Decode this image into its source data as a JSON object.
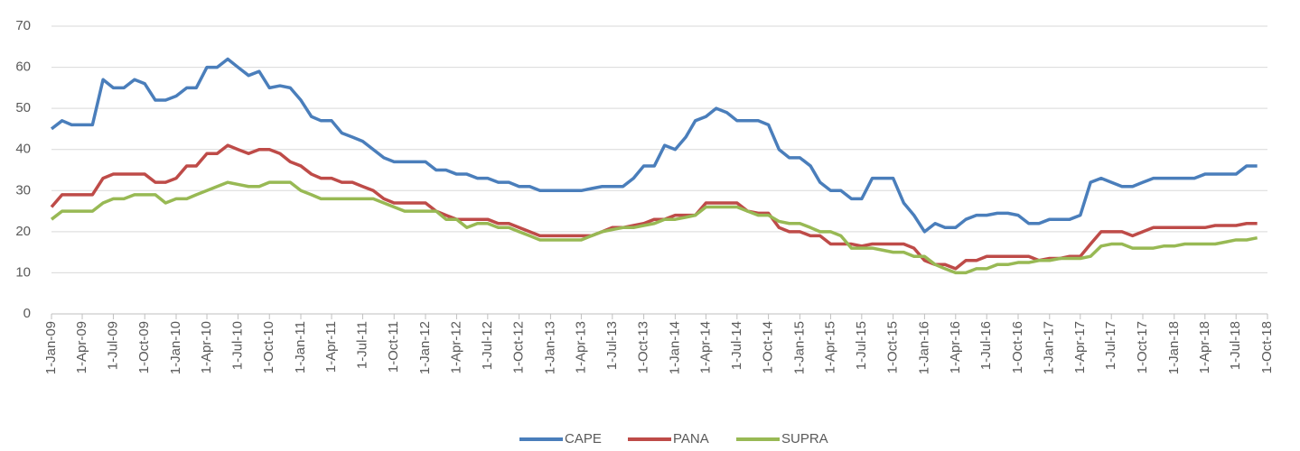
{
  "chart_data": {
    "type": "line",
    "x": [
      "2009-01-01",
      "2009-02-01",
      "2009-03-01",
      "2009-04-01",
      "2009-05-01",
      "2009-06-01",
      "2009-07-01",
      "2009-08-01",
      "2009-09-01",
      "2009-10-01",
      "2009-11-01",
      "2009-12-01",
      "2010-01-01",
      "2010-02-01",
      "2010-03-01",
      "2010-04-01",
      "2010-05-01",
      "2010-06-01",
      "2010-07-01",
      "2010-08-01",
      "2010-09-01",
      "2010-10-01",
      "2010-11-01",
      "2010-12-01",
      "2011-01-01",
      "2011-02-01",
      "2011-03-01",
      "2011-04-01",
      "2011-05-01",
      "2011-06-01",
      "2011-07-01",
      "2011-08-01",
      "2011-09-01",
      "2011-10-01",
      "2011-11-01",
      "2011-12-01",
      "2012-01-01",
      "2012-02-01",
      "2012-03-01",
      "2012-04-01",
      "2012-05-01",
      "2012-06-01",
      "2012-07-01",
      "2012-08-01",
      "2012-09-01",
      "2012-10-01",
      "2012-11-01",
      "2012-12-01",
      "2013-01-01",
      "2013-02-01",
      "2013-03-01",
      "2013-04-01",
      "2013-05-01",
      "2013-06-01",
      "2013-07-01",
      "2013-08-01",
      "2013-09-01",
      "2013-10-01",
      "2013-11-01",
      "2013-12-01",
      "2014-01-01",
      "2014-02-01",
      "2014-03-01",
      "2014-04-01",
      "2014-05-01",
      "2014-06-01",
      "2014-07-01",
      "2014-08-01",
      "2014-09-01",
      "2014-10-01",
      "2014-11-01",
      "2014-12-01",
      "2015-01-01",
      "2015-02-01",
      "2015-03-01",
      "2015-04-01",
      "2015-05-01",
      "2015-06-01",
      "2015-07-01",
      "2015-08-01",
      "2015-09-01",
      "2015-10-01",
      "2015-11-01",
      "2015-12-01",
      "2016-01-01",
      "2016-02-01",
      "2016-03-01",
      "2016-04-01",
      "2016-05-01",
      "2016-06-01",
      "2016-07-01",
      "2016-08-01",
      "2016-09-01",
      "2016-10-01",
      "2016-11-01",
      "2016-12-01",
      "2017-01-01",
      "2017-02-01",
      "2017-03-01",
      "2017-04-01",
      "2017-05-01",
      "2017-06-01",
      "2017-07-01",
      "2017-08-01",
      "2017-09-01",
      "2017-10-01",
      "2017-11-01",
      "2017-12-01",
      "2018-01-01",
      "2018-02-01",
      "2018-03-01",
      "2018-04-01",
      "2018-05-01",
      "2018-06-01",
      "2018-07-01",
      "2018-08-01",
      "2018-09-01"
    ],
    "series": [
      {
        "name": "CAPE",
        "color": "#4a7ebb",
        "values": [
          45,
          47,
          46,
          46,
          46,
          57,
          55,
          55,
          57,
          56,
          52,
          52,
          53,
          55,
          55,
          60,
          60,
          62,
          60,
          58,
          59,
          55,
          55.5,
          55,
          52,
          48,
          47,
          47,
          44,
          43,
          42,
          40,
          38,
          37,
          37,
          37,
          37,
          35,
          35,
          34,
          34,
          33,
          33,
          32,
          32,
          31,
          31,
          30,
          30,
          30,
          30,
          30,
          30.5,
          31,
          31,
          31,
          33,
          36,
          36,
          41,
          40,
          43,
          47,
          48,
          50,
          49,
          47,
          47,
          47,
          46,
          40,
          38,
          38,
          36,
          32,
          30,
          30,
          28,
          28,
          33,
          33,
          33,
          27,
          24,
          20,
          22,
          21,
          21,
          23,
          24,
          24,
          24.5,
          24.5,
          24,
          22,
          22,
          23,
          23,
          23,
          24,
          32,
          33,
          32,
          31,
          31,
          32,
          33,
          33,
          33,
          33,
          33,
          34,
          34,
          34,
          34,
          36,
          36
        ]
      },
      {
        "name": "PANA",
        "color": "#be4b48",
        "values": [
          26,
          29,
          29,
          29,
          29,
          33,
          34,
          34,
          34,
          34,
          32,
          32,
          33,
          36,
          36,
          39,
          39,
          41,
          40,
          39,
          40,
          40,
          39,
          37,
          36,
          34,
          33,
          33,
          32,
          32,
          31,
          30,
          28,
          27,
          27,
          27,
          27,
          25,
          24,
          23,
          23,
          23,
          23,
          22,
          22,
          21,
          20,
          19,
          19,
          19,
          19,
          19,
          19,
          20,
          21,
          21,
          21.5,
          22,
          23,
          23,
          24,
          24,
          24,
          27,
          27,
          27,
          27,
          25,
          24.5,
          24.5,
          21,
          20,
          20,
          19,
          19,
          17,
          17,
          17,
          16.5,
          17,
          17,
          17,
          17,
          16,
          13,
          12,
          12,
          11,
          13,
          13,
          14,
          14,
          14,
          14,
          14,
          13,
          13.5,
          13.5,
          14,
          14,
          17,
          20,
          20,
          20,
          19,
          20,
          21,
          21,
          21,
          21,
          21,
          21,
          21.5,
          21.5,
          21.5,
          22,
          22
        ]
      },
      {
        "name": "SUPRA",
        "color": "#98b954",
        "values": [
          23,
          25,
          25,
          25,
          25,
          27,
          28,
          28,
          29,
          29,
          29,
          27,
          28,
          28,
          29,
          30,
          31,
          32,
          31.5,
          31,
          31,
          32,
          32,
          32,
          30,
          29,
          28,
          28,
          28,
          28,
          28,
          28,
          27,
          26,
          25,
          25,
          25,
          25,
          23,
          23,
          21,
          22,
          22,
          21,
          21,
          20,
          19,
          18,
          18,
          18,
          18,
          18,
          19,
          20,
          20.5,
          21,
          21,
          21.5,
          22,
          23,
          23,
          23.5,
          24,
          26,
          26,
          26,
          26,
          25,
          24,
          24,
          22.5,
          22,
          22,
          21,
          20,
          20,
          19,
          16,
          16,
          16,
          15.5,
          15,
          15,
          14,
          14,
          12,
          11,
          10,
          10,
          11,
          11,
          12,
          12,
          12.5,
          12.5,
          13,
          13,
          13.5,
          13.5,
          13.5,
          14,
          16.5,
          17,
          17,
          16,
          16,
          16,
          16.5,
          16.5,
          17,
          17,
          17,
          17,
          17.5,
          18,
          18,
          18.5
        ]
      }
    ],
    "xlim": [
      "2009-01-01",
      "2018-10-01"
    ],
    "xticks": [
      {
        "value": "2009-01-01",
        "label": "1-Jan-09"
      },
      {
        "value": "2009-04-01",
        "label": "1-Apr-09"
      },
      {
        "value": "2009-07-01",
        "label": "1-Jul-09"
      },
      {
        "value": "2009-10-01",
        "label": "1-Oct-09"
      },
      {
        "value": "2010-01-01",
        "label": "1-Jan-10"
      },
      {
        "value": "2010-04-01",
        "label": "1-Apr-10"
      },
      {
        "value": "2010-07-01",
        "label": "1-Jul-10"
      },
      {
        "value": "2010-10-01",
        "label": "1-Oct-10"
      },
      {
        "value": "2011-01-01",
        "label": "1-Jan-11"
      },
      {
        "value": "2011-04-01",
        "label": "1-Apr-11"
      },
      {
        "value": "2011-07-01",
        "label": "1-Jul-11"
      },
      {
        "value": "2011-10-01",
        "label": "1-Oct-11"
      },
      {
        "value": "2012-01-01",
        "label": "1-Jan-12"
      },
      {
        "value": "2012-04-01",
        "label": "1-Apr-12"
      },
      {
        "value": "2012-07-01",
        "label": "1-Jul-12"
      },
      {
        "value": "2012-10-01",
        "label": "1-Oct-12"
      },
      {
        "value": "2013-01-01",
        "label": "1-Jan-13"
      },
      {
        "value": "2013-04-01",
        "label": "1-Apr-13"
      },
      {
        "value": "2013-07-01",
        "label": "1-Jul-13"
      },
      {
        "value": "2013-10-01",
        "label": "1-Oct-13"
      },
      {
        "value": "2014-01-01",
        "label": "1-Jan-14"
      },
      {
        "value": "2014-04-01",
        "label": "1-Apr-14"
      },
      {
        "value": "2014-07-01",
        "label": "1-Jul-14"
      },
      {
        "value": "2014-10-01",
        "label": "1-Oct-14"
      },
      {
        "value": "2015-01-01",
        "label": "1-Jan-15"
      },
      {
        "value": "2015-04-01",
        "label": "1-Apr-15"
      },
      {
        "value": "2015-07-01",
        "label": "1-Jul-15"
      },
      {
        "value": "2015-10-01",
        "label": "1-Oct-15"
      },
      {
        "value": "2016-01-01",
        "label": "1-Jan-16"
      },
      {
        "value": "2016-04-01",
        "label": "1-Apr-16"
      },
      {
        "value": "2016-07-01",
        "label": "1-Jul-16"
      },
      {
        "value": "2016-10-01",
        "label": "1-Oct-16"
      },
      {
        "value": "2017-01-01",
        "label": "1-Jan-17"
      },
      {
        "value": "2017-04-01",
        "label": "1-Apr-17"
      },
      {
        "value": "2017-07-01",
        "label": "1-Jul-17"
      },
      {
        "value": "2017-10-01",
        "label": "1-Oct-17"
      },
      {
        "value": "2018-01-01",
        "label": "1-Jan-18"
      },
      {
        "value": "2018-04-01",
        "label": "1-Apr-18"
      },
      {
        "value": "2018-07-01",
        "label": "1-Jul-18"
      },
      {
        "value": "2018-10-01",
        "label": "1-Oct-18"
      }
    ],
    "ylim": [
      0,
      70
    ],
    "yticks": [
      0,
      10,
      20,
      30,
      40,
      50,
      60,
      70
    ],
    "grid": true,
    "legend": "bottom"
  }
}
